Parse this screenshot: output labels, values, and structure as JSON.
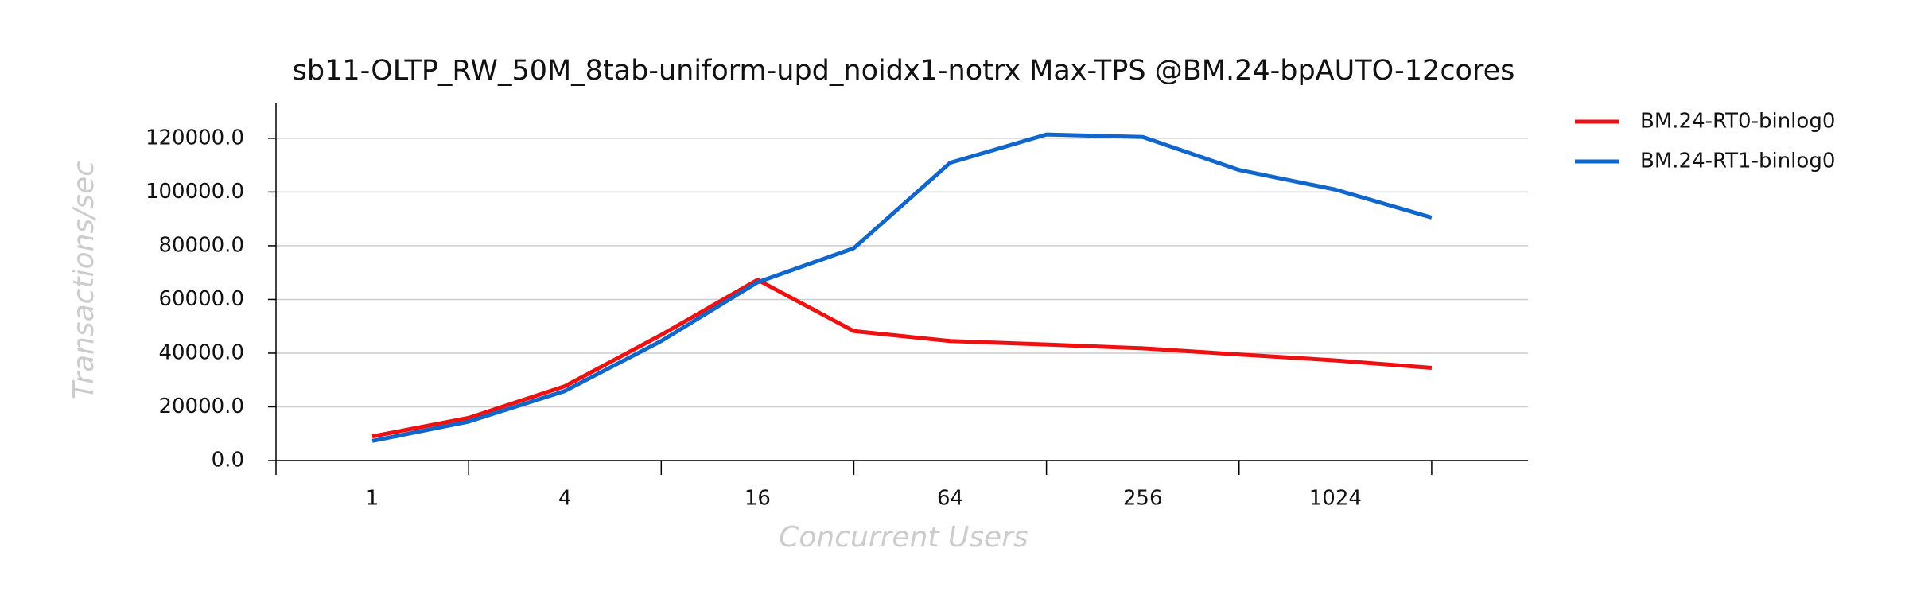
{
  "chart_data": {
    "type": "line",
    "title": "sb11-OLTP_RW_50M_8tab-uniform-upd_noidx1-notrx Max-TPS @BM.24-bpAUTO-12cores",
    "x_label": "Concurrent Users",
    "y_label": "Transactions/sec",
    "categories": [
      "1",
      null,
      "4",
      null,
      "16",
      null,
      "64",
      null,
      "256",
      null,
      "1024",
      null
    ],
    "series": [
      {
        "name": "BM.24-RT0-binlog0",
        "color": "#ee1111",
        "values": [
          9000,
          15900,
          27700,
          46800,
          67300,
          48200,
          44500,
          43200,
          41800,
          39500,
          37300,
          34500
        ]
      },
      {
        "name": "BM.24-RT1-binlog0",
        "color": "#1166cc",
        "values": [
          7300,
          14500,
          25900,
          44500,
          66400,
          79100,
          110900,
          121400,
          120500,
          108200,
          100900,
          90500
        ]
      }
    ],
    "ylim": [
      0,
      133000
    ],
    "yticks": [
      {
        "value": 0,
        "label": "0.0"
      },
      {
        "value": 20000,
        "label": "20000.0"
      },
      {
        "value": 40000,
        "label": "40000.0"
      },
      {
        "value": 60000,
        "label": "60000.0"
      },
      {
        "value": 80000,
        "label": "80000.0"
      },
      {
        "value": 100000,
        "label": "100000.0"
      },
      {
        "value": 120000,
        "label": "120000.0"
      }
    ],
    "grid": true,
    "legend": "right"
  }
}
